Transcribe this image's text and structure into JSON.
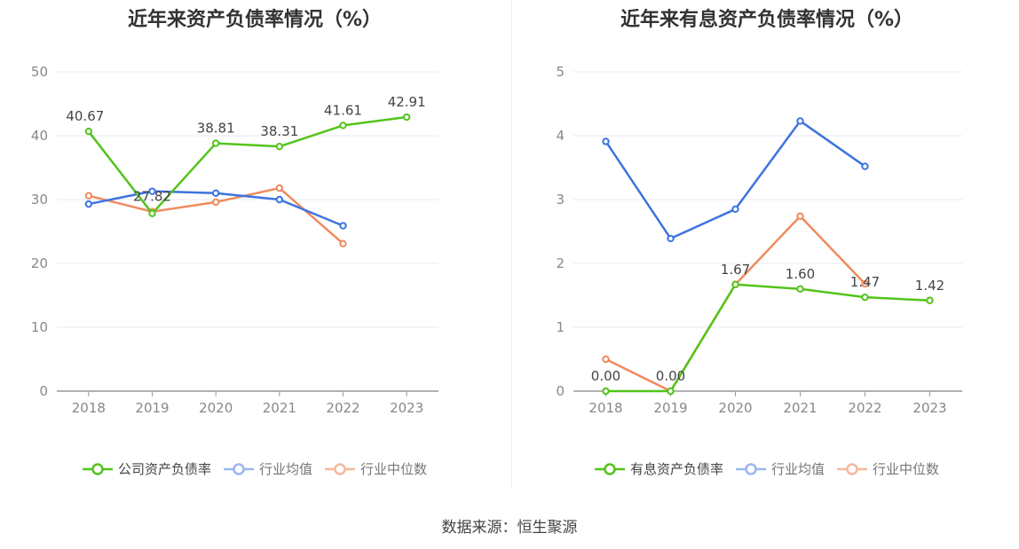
{
  "source": "数据来源：恒生聚源",
  "colors": {
    "company": "#52c41a",
    "industry_avg": "#3d74e0",
    "industry_median": "#f08a5d"
  },
  "chart_data": [
    {
      "type": "line",
      "title": "近年来资产负债率情况（%）",
      "x": [
        "2018",
        "2019",
        "2020",
        "2021",
        "2022",
        "2023"
      ],
      "ylim": [
        0,
        50
      ],
      "yticks": [
        0,
        10,
        20,
        30,
        40,
        50
      ],
      "grid": true,
      "legend_position": "bottom",
      "series": [
        {
          "name": "公司资产负债率",
          "color": "#52c41a",
          "values": [
            40.67,
            27.82,
            38.81,
            38.31,
            41.61,
            42.91
          ],
          "labels": [
            "40.67",
            "27.82",
            "38.81",
            "38.31",
            "41.61",
            "42.91"
          ]
        },
        {
          "name": "行业均值",
          "color": "#3d74e0",
          "values": [
            29.3,
            31.3,
            31.0,
            30.0,
            25.9,
            null
          ]
        },
        {
          "name": "行业中位数",
          "color": "#f08a5d",
          "values": [
            30.6,
            28.1,
            29.6,
            31.8,
            23.1,
            null
          ]
        }
      ]
    },
    {
      "type": "line",
      "title": "近年来有息资产负债率情况（%）",
      "x": [
        "2018",
        "2019",
        "2020",
        "2021",
        "2022",
        "2023"
      ],
      "ylim": [
        0,
        5
      ],
      "yticks": [
        0,
        1,
        2,
        3,
        4,
        5
      ],
      "grid": true,
      "legend_position": "bottom",
      "series": [
        {
          "name": "有息资产负债率",
          "color": "#52c41a",
          "values": [
            0.0,
            0.0,
            1.67,
            1.6,
            1.47,
            1.42
          ],
          "labels": [
            "0.00",
            "0.00",
            "1.67",
            "1.60",
            "1.47",
            "1.42"
          ]
        },
        {
          "name": "行业均值",
          "color": "#3d74e0",
          "values": [
            3.91,
            2.39,
            2.85,
            4.23,
            3.52,
            null
          ]
        },
        {
          "name": "行业中位数",
          "color": "#f08a5d",
          "values": [
            0.5,
            0.0,
            1.67,
            2.74,
            1.68,
            null
          ]
        }
      ]
    }
  ]
}
